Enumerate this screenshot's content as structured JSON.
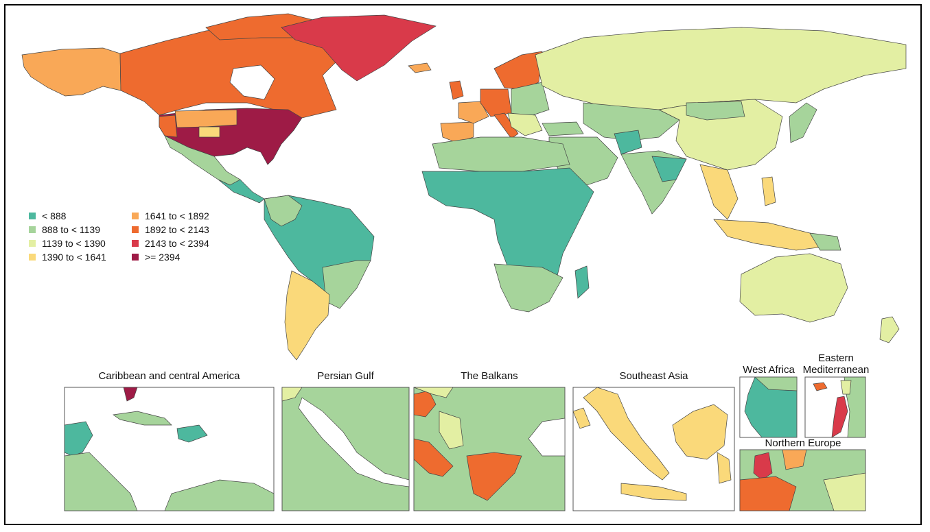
{
  "legend": {
    "items": [
      {
        "label": "< 888",
        "color": "#4DB89E"
      },
      {
        "label": "888 to < 1139",
        "color": "#A6D49B"
      },
      {
        "label": "1139 to < 1390",
        "color": "#E3EFA3"
      },
      {
        "label": "1390 to < 1641",
        "color": "#FAD97A"
      },
      {
        "label": "1641 to < 1892",
        "color": "#F9A857"
      },
      {
        "label": "1892 to < 2143",
        "color": "#EE6B2F"
      },
      {
        "label": "2143 to < 2394",
        "color": "#D93A4A"
      },
      {
        "label": ">= 2394",
        "color": "#9E1B46"
      }
    ]
  },
  "insets": {
    "caribbean": "Caribbean and central America",
    "persian_gulf": "Persian Gulf",
    "balkans": "The Balkans",
    "southeast_asia": "Southeast Asia",
    "west_africa": "West Africa",
    "eastern_med": "Eastern\nMediterranean",
    "northern_europe": "Northern Europe"
  }
}
